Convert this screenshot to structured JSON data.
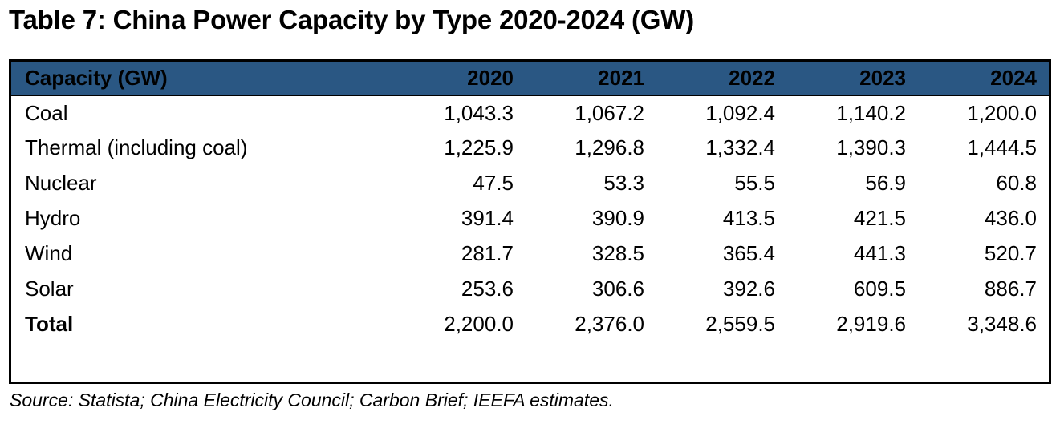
{
  "title": "Table 7: China Power Capacity by Type 2020-2024 (GW)",
  "table": {
    "header": [
      "Capacity (GW)",
      "2020",
      "2021",
      "2022",
      "2023",
      "2024"
    ],
    "rows": [
      {
        "label": "Coal",
        "bold": false,
        "values": [
          "1,043.3",
          "1,067.2",
          "1,092.4",
          "1,140.2",
          "1,200.0"
        ]
      },
      {
        "label": "Thermal (including coal)",
        "bold": false,
        "values": [
          "1,225.9",
          "1,296.8",
          "1,332.4",
          "1,390.3",
          "1,444.5"
        ]
      },
      {
        "label": "Nuclear",
        "bold": false,
        "values": [
          "47.5",
          "53.3",
          "55.5",
          "56.9",
          "60.8"
        ]
      },
      {
        "label": "Hydro",
        "bold": false,
        "values": [
          "391.4",
          "390.9",
          "413.5",
          "421.5",
          "436.0"
        ]
      },
      {
        "label": "Wind",
        "bold": false,
        "values": [
          "281.7",
          "328.5",
          "365.4",
          "441.3",
          "520.7"
        ]
      },
      {
        "label": "Solar",
        "bold": false,
        "values": [
          "253.6",
          "306.6",
          "392.6",
          "609.5",
          "886.7"
        ]
      },
      {
        "label": "Total",
        "bold": true,
        "values": [
          "2,200.0",
          "2,376.0",
          "2,559.5",
          "2,919.6",
          "3,348.6"
        ]
      }
    ]
  },
  "source": "Source: Statista; China Electricity Council; Carbon Brief; IEEFA estimates.",
  "colors": {
    "header_bg": "#2A5783",
    "header_text": "#000000",
    "border": "#000000",
    "body_bg": "#FFFFFF"
  }
}
